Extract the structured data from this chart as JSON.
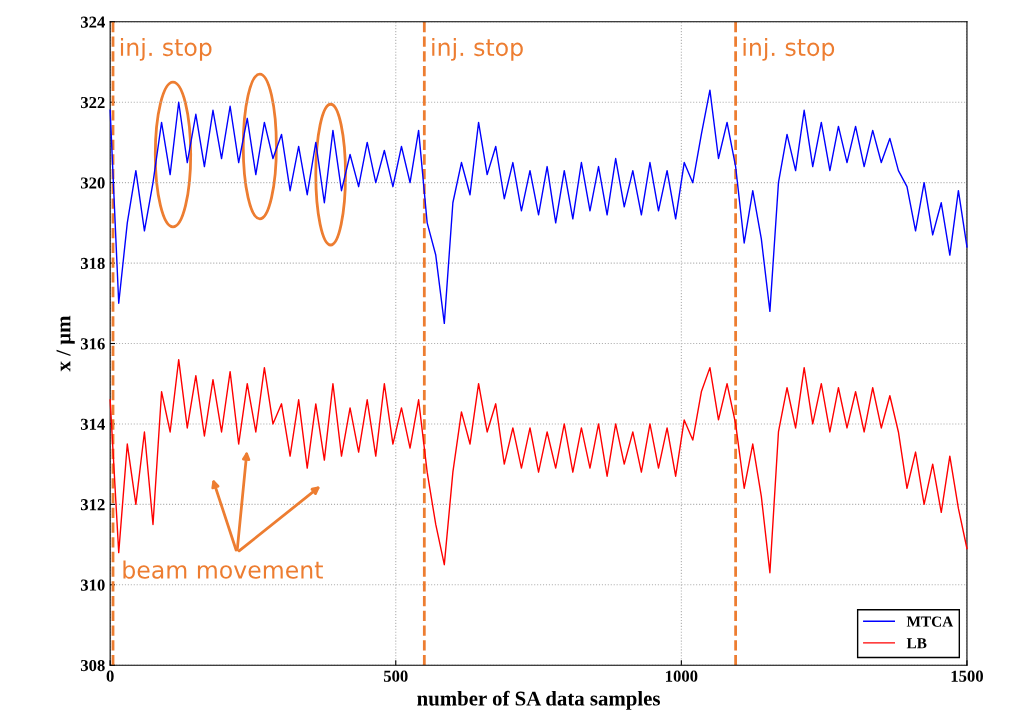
{
  "chart_data": {
    "type": "line",
    "xlabel": "number of SA data samples",
    "ylabel": "x / µm",
    "x": [
      0,
      15,
      30,
      45,
      60,
      75,
      90,
      105,
      120,
      135,
      150,
      165,
      180,
      195,
      210,
      225,
      240,
      255,
      270,
      285,
      300,
      315,
      330,
      345,
      360,
      375,
      390,
      405,
      420,
      435,
      450,
      465,
      480,
      495,
      510,
      525,
      540,
      555,
      570,
      585,
      600,
      615,
      630,
      645,
      660,
      675,
      690,
      705,
      720,
      735,
      750,
      765,
      780,
      795,
      810,
      825,
      840,
      855,
      870,
      885,
      900,
      915,
      930,
      945,
      960,
      975,
      990,
      1005,
      1020,
      1035,
      1050,
      1065,
      1080,
      1095,
      1110,
      1125,
      1140,
      1155,
      1170,
      1185,
      1200,
      1215,
      1230,
      1245,
      1260,
      1275,
      1290,
      1305,
      1320,
      1335,
      1350,
      1365,
      1380,
      1395,
      1410,
      1425,
      1440,
      1455,
      1470,
      1485,
      1500
    ],
    "series": [
      {
        "name": "MTCA",
        "color": "#0000ff",
        "values": [
          321.8,
          317,
          319,
          320.3,
          318.8,
          320,
          321.5,
          320.2,
          322,
          320.5,
          321.7,
          320.4,
          321.8,
          320.6,
          321.9,
          320.5,
          321.6,
          320.2,
          321.5,
          320.6,
          321.2,
          319.8,
          320.9,
          319.7,
          321,
          319.5,
          321.3,
          319.8,
          320.7,
          319.9,
          321,
          320,
          320.8,
          319.9,
          320.9,
          320,
          321.3,
          319,
          318.2,
          316.5,
          319.5,
          320.5,
          319.7,
          321.5,
          320.2,
          320.9,
          319.6,
          320.5,
          319.3,
          320.3,
          319.2,
          320.4,
          319,
          320.3,
          319.1,
          320.5,
          319.3,
          320.4,
          319.2,
          320.6,
          319.4,
          320.3,
          319.2,
          320.5,
          319.3,
          320.3,
          319.1,
          320.5,
          320,
          321.2,
          322.3,
          320.6,
          321.5,
          320.4,
          318.5,
          319.8,
          318.6,
          316.8,
          320,
          321.2,
          320.3,
          321.8,
          320.4,
          321.5,
          320.3,
          321.4,
          320.5,
          321.4,
          320.4,
          321.3,
          320.5,
          321.1,
          320.3,
          319.9,
          318.8,
          320,
          318.7,
          319.5,
          318.2,
          319.8,
          318.4
        ]
      },
      {
        "name": "LB",
        "color": "#ff0000",
        "values": [
          314.6,
          310.8,
          313.5,
          312,
          313.8,
          311.5,
          314.8,
          313.8,
          315.6,
          313.9,
          315.2,
          313.7,
          315.1,
          313.8,
          315.3,
          313.5,
          315,
          313.8,
          315.4,
          314,
          314.5,
          313.2,
          314.6,
          312.9,
          314.5,
          313.1,
          315,
          313.2,
          314.4,
          313.3,
          314.6,
          313.2,
          315,
          313.5,
          314.4,
          313.4,
          314.6,
          312.8,
          311.5,
          310.5,
          312.8,
          314.3,
          313.5,
          315,
          313.8,
          314.5,
          313,
          313.9,
          312.9,
          313.9,
          312.8,
          313.8,
          312.9,
          314,
          312.8,
          313.9,
          312.9,
          314,
          312.7,
          314,
          313,
          313.8,
          312.8,
          314,
          312.9,
          313.9,
          312.7,
          314.1,
          313.6,
          314.8,
          315.4,
          314.1,
          315,
          314,
          312.4,
          313.5,
          312.2,
          310.3,
          313.8,
          314.9,
          313.9,
          315.4,
          314,
          315,
          313.8,
          314.9,
          313.9,
          314.8,
          313.8,
          314.9,
          313.9,
          314.7,
          313.8,
          312.4,
          313.3,
          312,
          313,
          311.8,
          313.2,
          311.9,
          310.9
        ]
      }
    ],
    "xlim": [
      0,
      1500
    ],
    "xticks": [
      0,
      500,
      1000,
      1500
    ],
    "ylim": [
      308,
      324
    ],
    "yticks": [
      308,
      310,
      312,
      314,
      316,
      318,
      320,
      322,
      324
    ],
    "grid": true,
    "legend": "bottom right",
    "line_style": "solid",
    "marker": "none",
    "ref_lines": [
      {
        "axis": "x",
        "value": 5,
        "label": "inj. stop",
        "color": "#ed7d31",
        "line_style": "dashed"
      },
      {
        "axis": "x",
        "value": 550,
        "label": "inj. stop",
        "color": "#ed7d31",
        "line_style": "dashed"
      },
      {
        "axis": "x",
        "value": 1095,
        "label": "inj. stop",
        "color": "#ed7d31",
        "line_style": "dashed"
      }
    ],
    "annotations": [
      "beam movement"
    ]
  }
}
